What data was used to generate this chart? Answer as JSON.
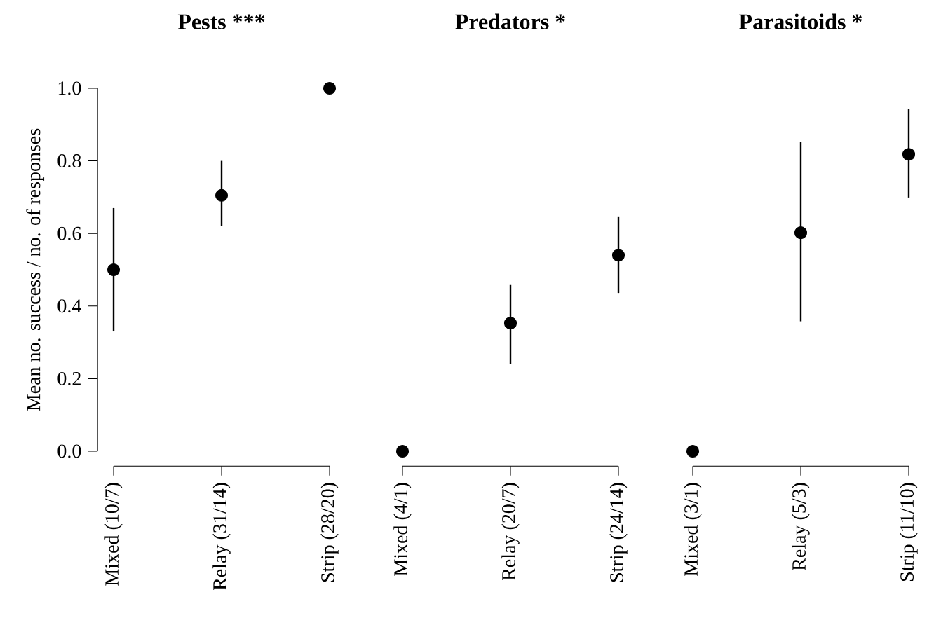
{
  "chart_data": [
    {
      "type": "scatter",
      "title": "Pests ***",
      "ylabel": "Mean no. success / no. of responses",
      "categories": [
        "Mixed (10/7)",
        "Relay (31/14)",
        "Strip (28/20)"
      ],
      "values": [
        0.5,
        0.705,
        1.0
      ],
      "errors": [
        [
          0.33,
          0.67
        ],
        [
          0.62,
          0.8
        ],
        null
      ],
      "color": "#000000",
      "ylim": [
        0,
        1
      ],
      "yticks": [
        {
          "value": 0,
          "label": "0.0"
        },
        0.2,
        0.4,
        0.6,
        0.8,
        {
          "value": 1,
          "label": "1.0"
        }
      ],
      "grid": false
    },
    {
      "type": "scatter",
      "title": "Predators  *",
      "categories": [
        "Mixed (4/1)",
        "Relay (20/7)",
        "Strip (24/14)"
      ],
      "values": [
        0.0,
        0.353,
        0.54
      ],
      "errors": [
        null,
        [
          0.24,
          0.458
        ],
        [
          0.436,
          0.647
        ]
      ],
      "color": "#000000",
      "ylim": [
        0,
        1
      ],
      "tick_labels": "x",
      "grid": false
    },
    {
      "type": "scatter",
      "title": "Parasitoids  *",
      "categories": [
        "Mixed (3/1)",
        "Relay (5/3)",
        "Strip (11/10)"
      ],
      "values": [
        0.0,
        0.602,
        0.818
      ],
      "errors": [
        null,
        [
          0.358,
          0.852
        ],
        [
          0.699,
          0.944
        ]
      ],
      "color": "#000000",
      "ylim": [
        0,
        1
      ],
      "tick_labels": "x",
      "grid": false
    }
  ]
}
